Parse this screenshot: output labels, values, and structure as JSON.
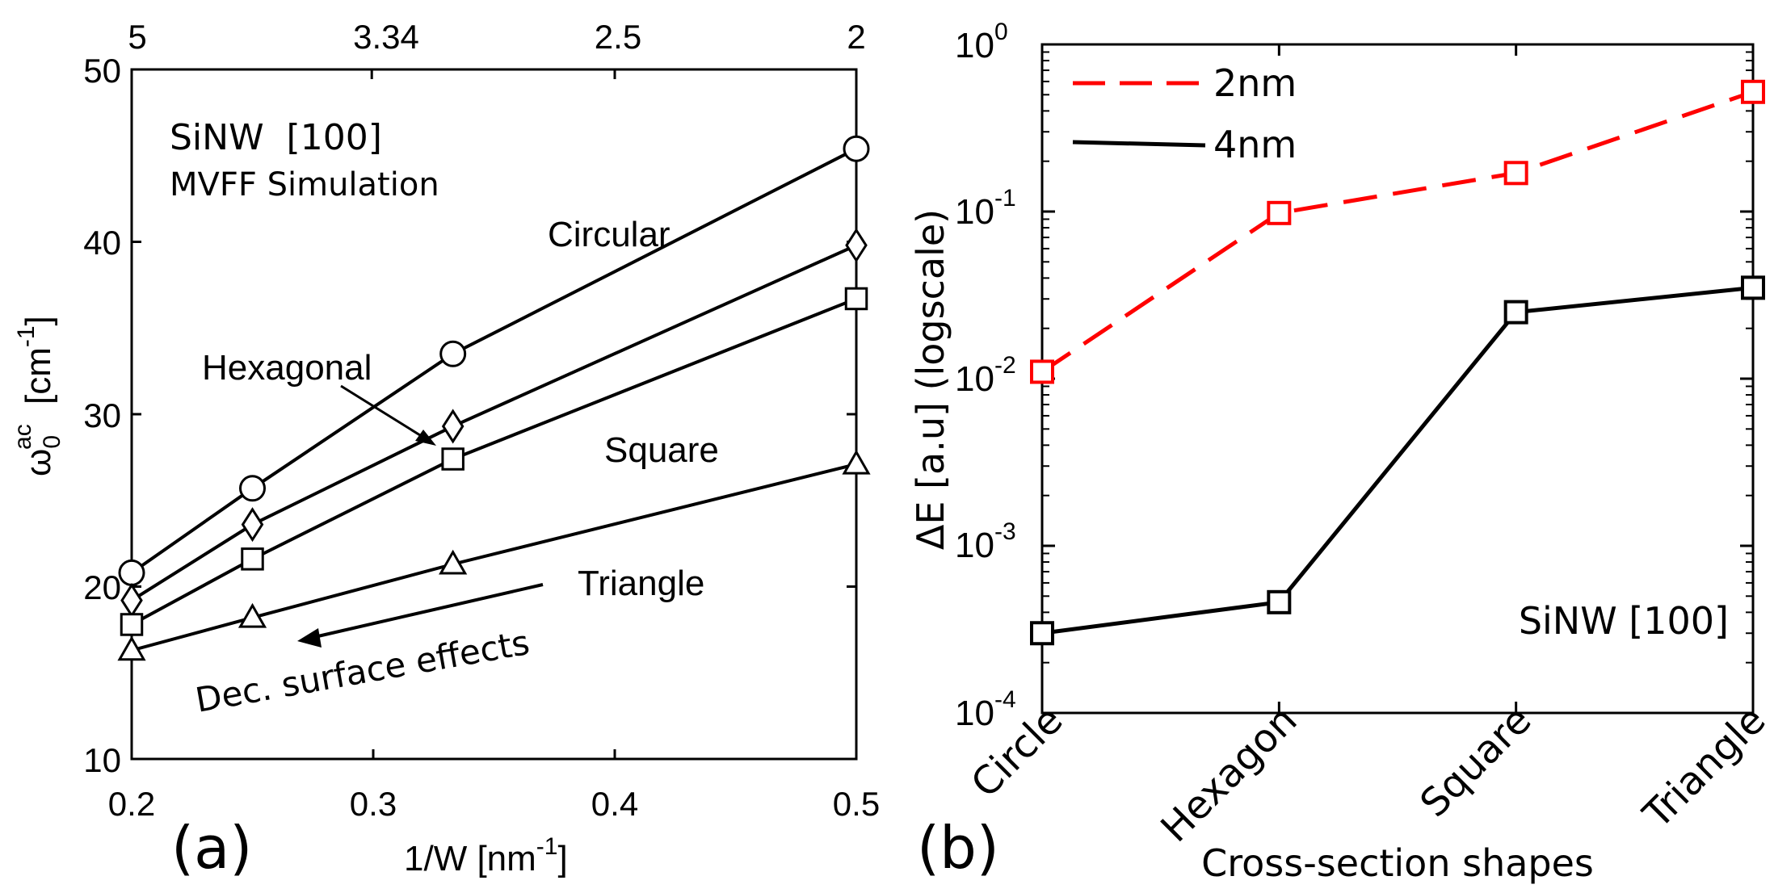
{
  "chart_data": [
    {
      "type": "line",
      "panel_label": "(a)",
      "title": "SiNW  [100]",
      "subtitle": "MVFF Simulation",
      "xlabel": {
        "main": "1/W [nm",
        "sup": "-1",
        "close": "]"
      },
      "ylabel": {
        "omega": "ω",
        "sub": "0",
        "sup": "ac",
        "unit": "[cm",
        "unit_sup": "-1",
        "close": "]"
      },
      "xlim": [
        0.2,
        0.5
      ],
      "ylim": [
        10,
        50
      ],
      "x_ticks": [
        "0.2",
        "0.3",
        "0.4",
        "0.5"
      ],
      "y_ticks": [
        "10",
        "20",
        "30",
        "40",
        "50"
      ],
      "top_axis_ticks": [
        "5",
        "3.34",
        "2.5",
        "2"
      ],
      "x": [
        0.2,
        0.25,
        0.333,
        0.5
      ],
      "series": [
        {
          "name": "Circular",
          "marker": "circle",
          "values": [
            20.8,
            25.7,
            33.5,
            45.4
          ]
        },
        {
          "name": "Hexagonal",
          "marker": "diamond",
          "values": [
            19.2,
            23.6,
            29.3,
            39.8
          ]
        },
        {
          "name": "Square",
          "marker": "square",
          "values": [
            17.8,
            21.6,
            27.4,
            36.7
          ]
        },
        {
          "name": "Triangle",
          "marker": "triangle",
          "values": [
            16.3,
            18.2,
            21.3,
            27.1
          ]
        }
      ],
      "annotations": {
        "surface": "Dec. surface effects"
      }
    },
    {
      "type": "line",
      "panel_label": "(b)",
      "yscale": "log",
      "xlabel": "Cross-section shapes",
      "ylabel": "ΔE [a.u] (logscale)",
      "ylim_exponents": [
        -4,
        0
      ],
      "y_ticks": [
        {
          "base": "10",
          "exp": "0"
        },
        {
          "base": "10",
          "exp": "-1"
        },
        {
          "base": "10",
          "exp": "-2"
        },
        {
          "base": "10",
          "exp": "-3"
        },
        {
          "base": "10",
          "exp": "-4"
        }
      ],
      "categories": [
        "Circle",
        "Hexagon",
        "Square",
        "Triangle"
      ],
      "series": [
        {
          "name": "2nm",
          "color": "#ff0000",
          "style": "dashed",
          "values": [
            0.011,
            0.098,
            0.17,
            0.52
          ]
        },
        {
          "name": "4nm",
          "color": "#000000",
          "style": "solid",
          "values": [
            0.0003,
            0.00046,
            0.025,
            0.035
          ]
        }
      ],
      "annotation": "SiNW [100]",
      "legend_position": "top-left"
    }
  ]
}
